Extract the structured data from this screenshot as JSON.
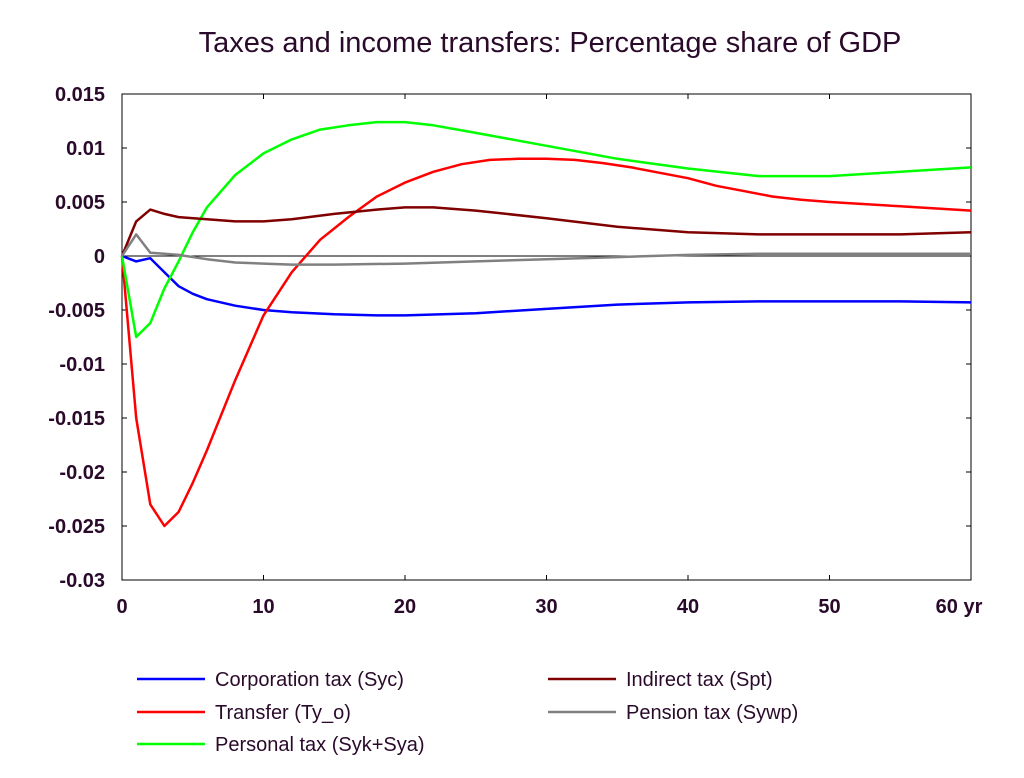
{
  "chart_data": {
    "type": "line",
    "title": "Taxes and income transfers: Percentage share of GDP",
    "xlabel": "",
    "ylabel": "",
    "xlim": [
      0,
      60
    ],
    "ylim": [
      -0.03,
      0.015
    ],
    "x_ticks": [
      0,
      10,
      20,
      30,
      40,
      50,
      60
    ],
    "x_tick_labels": [
      "0",
      "10",
      "20",
      "30",
      "40",
      "50",
      "60 yr"
    ],
    "y_ticks": [
      0.015,
      0.01,
      0.005,
      0,
      -0.005,
      -0.01,
      -0.015,
      -0.02,
      -0.025,
      -0.03
    ],
    "y_tick_labels": [
      "0.015",
      "0.01",
      "0.005",
      "0",
      "-0.005",
      "-0.01",
      "-0.015",
      "-0.02",
      "-0.025",
      "-0.03"
    ],
    "grid": false,
    "legend_position": "bottom",
    "series": [
      {
        "name": "Corporation tax (Syc)",
        "color": "#0000ff",
        "x": [
          0,
          1,
          2,
          3,
          4,
          5,
          6,
          8,
          10,
          12,
          15,
          18,
          20,
          25,
          30,
          35,
          40,
          45,
          50,
          55,
          60
        ],
        "y": [
          0,
          -0.0005,
          -0.0002,
          -0.0015,
          -0.0028,
          -0.0035,
          -0.004,
          -0.0046,
          -0.005,
          -0.0052,
          -0.0054,
          -0.0055,
          -0.0055,
          -0.0053,
          -0.0049,
          -0.0045,
          -0.0043,
          -0.0042,
          -0.0042,
          -0.0042,
          -0.0043
        ]
      },
      {
        "name": "Transfer (Ty_o)",
        "color": "#ff0000",
        "x": [
          0,
          1,
          2,
          3,
          4,
          5,
          6,
          8,
          10,
          12,
          14,
          16,
          18,
          20,
          22,
          24,
          26,
          28,
          30,
          32,
          34,
          36,
          38,
          40,
          42,
          44,
          46,
          48,
          50,
          55,
          60
        ],
        "y": [
          0,
          -0.015,
          -0.023,
          -0.025,
          -0.0237,
          -0.021,
          -0.018,
          -0.0115,
          -0.0055,
          -0.0015,
          0.0015,
          0.0036,
          0.0055,
          0.0068,
          0.0078,
          0.0085,
          0.0089,
          0.009,
          0.009,
          0.0089,
          0.0086,
          0.0082,
          0.0077,
          0.0072,
          0.0065,
          0.006,
          0.0055,
          0.0052,
          0.005,
          0.0046,
          0.0042
        ]
      },
      {
        "name": "Personal tax (Syk+Sya)",
        "color": "#00ff00",
        "x": [
          0,
          1,
          2,
          3,
          4,
          5,
          6,
          8,
          10,
          12,
          14,
          16,
          18,
          20,
          22,
          25,
          30,
          35,
          40,
          45,
          50,
          55,
          60
        ],
        "y": [
          0,
          -0.0075,
          -0.0062,
          -0.003,
          -0.0005,
          0.0022,
          0.0045,
          0.0075,
          0.0095,
          0.0108,
          0.0117,
          0.0121,
          0.0124,
          0.0124,
          0.0121,
          0.0114,
          0.0102,
          0.009,
          0.0081,
          0.0074,
          0.0074,
          0.0078,
          0.0082
        ]
      },
      {
        "name": "Indirect tax (Spt)",
        "color": "#800000",
        "x": [
          0,
          1,
          2,
          3,
          4,
          6,
          8,
          10,
          12,
          15,
          18,
          20,
          22,
          25,
          30,
          35,
          40,
          45,
          50,
          55,
          60
        ],
        "y": [
          0,
          0.0032,
          0.0043,
          0.0039,
          0.0036,
          0.0034,
          0.0032,
          0.0032,
          0.0034,
          0.0039,
          0.0043,
          0.0045,
          0.0045,
          0.0042,
          0.0035,
          0.0027,
          0.0022,
          0.002,
          0.002,
          0.002,
          0.0022
        ]
      },
      {
        "name": "Pension tax (Sywp)",
        "color": "#808080",
        "x": [
          0,
          1,
          2,
          3,
          4,
          6,
          8,
          10,
          12,
          15,
          20,
          25,
          30,
          35,
          40,
          45,
          50,
          55,
          60
        ],
        "y": [
          0,
          0.002,
          0.0003,
          0.0002,
          0.0001,
          -0.0003,
          -0.0006,
          -0.0007,
          -0.0008,
          -0.0008,
          -0.0007,
          -0.0005,
          -0.0003,
          -0.0001,
          0.0001,
          0.0002,
          0.0002,
          0.0002,
          0.0002
        ]
      }
    ],
    "legend_layout": [
      [
        "Corporation tax (Syc)",
        "Indirect tax (Spt)"
      ],
      [
        "Transfer (Ty_o)",
        "Pension tax (Sywp)"
      ],
      [
        "Personal tax (Syk+Sya)"
      ]
    ]
  }
}
